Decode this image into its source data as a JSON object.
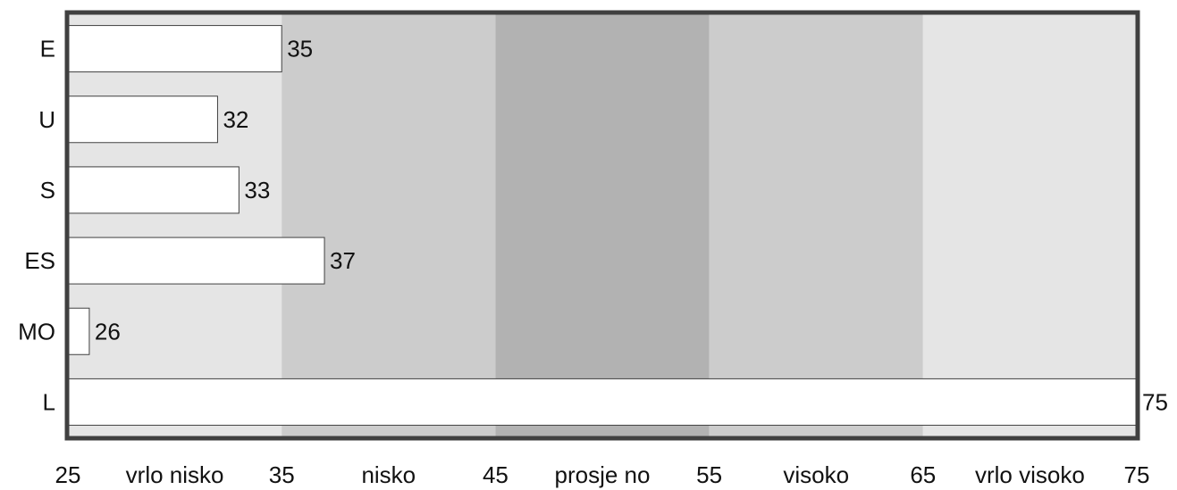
{
  "chart_data": {
    "type": "bar",
    "orientation": "horizontal",
    "categories": [
      "E",
      "U",
      "S",
      "ES",
      "MO",
      "L"
    ],
    "values": [
      35,
      32,
      33,
      37,
      26,
      75
    ],
    "data_labels": [
      "35",
      "32",
      "33",
      "37",
      "26",
      "75"
    ],
    "xlim": [
      25,
      75
    ],
    "grid": false,
    "legend": "none",
    "bands": [
      {
        "from": 25,
        "to": 35,
        "label": "vrlo nisko",
        "color": "#e5e5e5"
      },
      {
        "from": 35,
        "to": 45,
        "label": "nisko",
        "color": "#cccccc"
      },
      {
        "from": 45,
        "to": 55,
        "label": "prosje no",
        "color": "#b2b2b2"
      },
      {
        "from": 55,
        "to": 65,
        "label": "visoko",
        "color": "#cccccc"
      },
      {
        "from": 65,
        "to": 75,
        "label": "vrlo visoko",
        "color": "#e5e5e5"
      }
    ],
    "ticks": [
      "25",
      "35",
      "45",
      "55",
      "65",
      "75"
    ],
    "bar_color": "#ffffff",
    "frame_color": "#404040"
  }
}
